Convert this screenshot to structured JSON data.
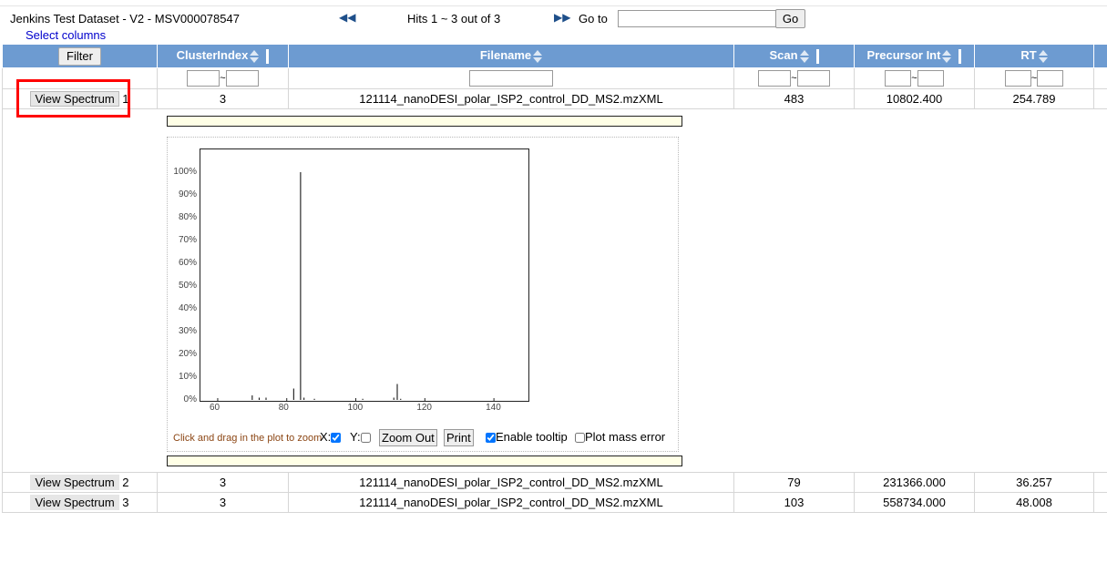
{
  "header": {
    "title": "Jenkins Test Dataset - V2 - MSV000078547",
    "select_columns": "Select columns",
    "hits": "Hits 1 ~ 3 out of 3",
    "goto_label": "Go to",
    "go_button": "Go"
  },
  "table": {
    "filter_button": "Filter",
    "columns": [
      "ClusterIndex",
      "Filename",
      "Scan",
      "Precursor Int",
      "RT"
    ],
    "tilde": "~",
    "view_label": "View Spectrum",
    "rows": [
      {
        "num": "1",
        "cluster": "3",
        "filename": "121114_nanoDESI_polar_ISP2_control_DD_MS2.mzXML",
        "scan": "483",
        "precursor": "10802.400",
        "rt": "254.789"
      },
      {
        "num": "2",
        "cluster": "3",
        "filename": "121114_nanoDESI_polar_ISP2_control_DD_MS2.mzXML",
        "scan": "79",
        "precursor": "231366.000",
        "rt": "36.257"
      },
      {
        "num": "3",
        "cluster": "3",
        "filename": "121114_nanoDESI_polar_ISP2_control_DD_MS2.mzXML",
        "scan": "103",
        "precursor": "558734.000",
        "rt": "48.008"
      }
    ]
  },
  "plot": {
    "y_ticks": [
      "100%",
      "90%",
      "80%",
      "70%",
      "60%",
      "50%",
      "40%",
      "30%",
      "20%",
      "10%",
      "0%"
    ],
    "x_ticks": [
      "60",
      "80",
      "100",
      "120",
      "140"
    ],
    "x_tick_values": [
      60,
      80,
      100,
      120,
      140
    ],
    "xlim": [
      55,
      150
    ],
    "ylim": [
      0,
      100
    ],
    "peaks": [
      {
        "mz": 70,
        "intensity": 2
      },
      {
        "mz": 72,
        "intensity": 1
      },
      {
        "mz": 74,
        "intensity": 1
      },
      {
        "mz": 82,
        "intensity": 5
      },
      {
        "mz": 84,
        "intensity": 100
      },
      {
        "mz": 85,
        "intensity": 1
      },
      {
        "mz": 88,
        "intensity": 0.5
      },
      {
        "mz": 102,
        "intensity": 0.5
      },
      {
        "mz": 111,
        "intensity": 1
      },
      {
        "mz": 112,
        "intensity": 7
      },
      {
        "mz": 113,
        "intensity": 0.5
      }
    ],
    "zoom_hint": "Click and drag in the plot to zoom",
    "x_label": "X:",
    "y_label": "Y:",
    "zoom_out": "Zoom Out",
    "print": "Print",
    "enable_tooltip": "Enable tooltip",
    "plot_mass_error": "Plot mass error"
  }
}
